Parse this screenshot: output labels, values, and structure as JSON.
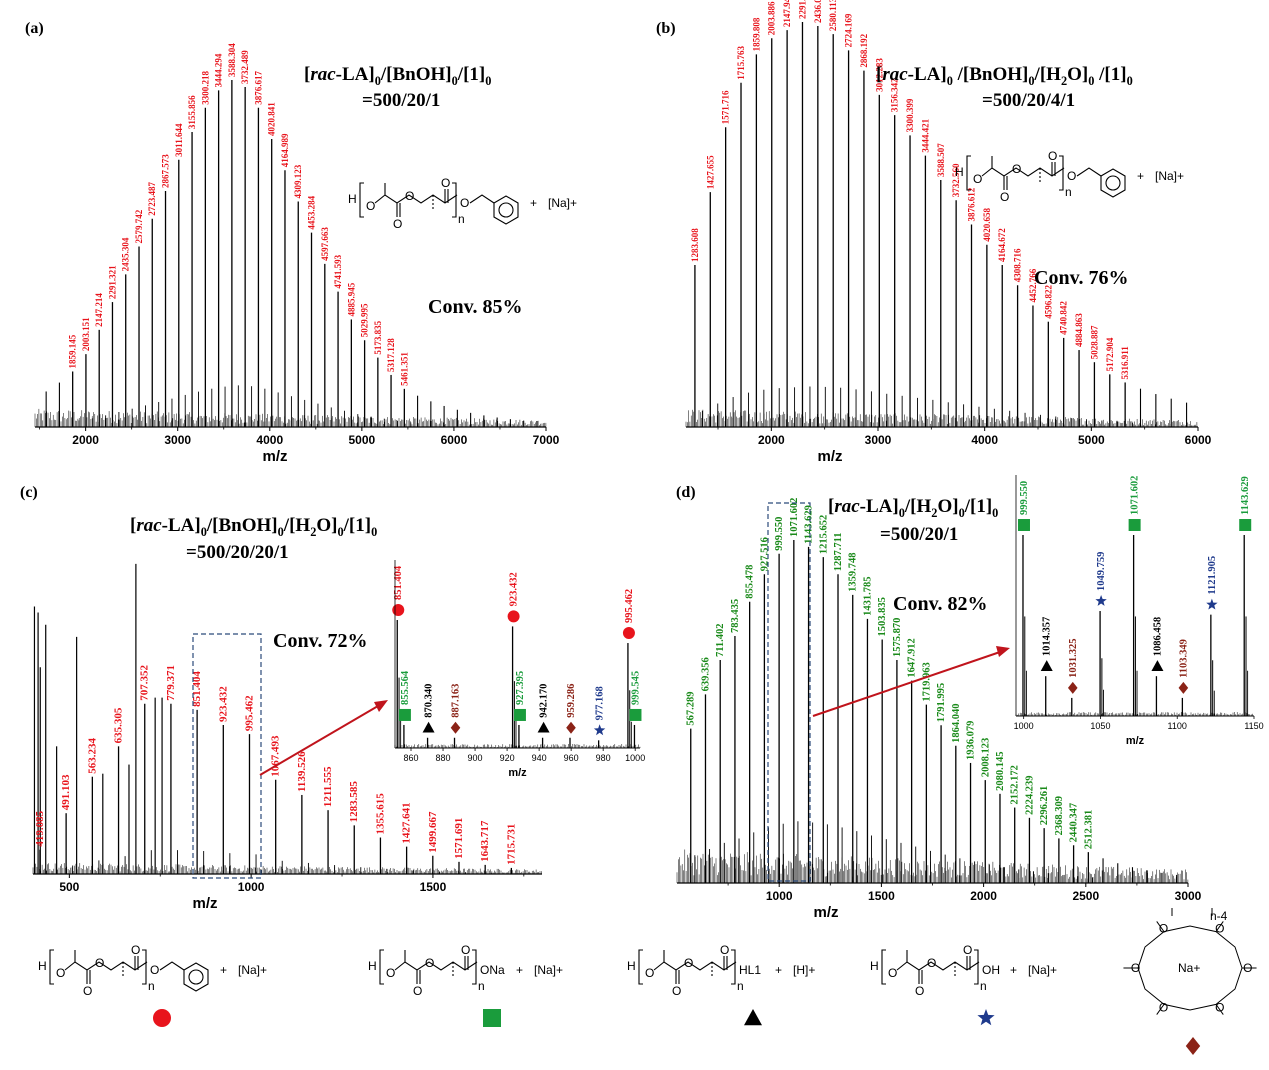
{
  "chart_data": [
    {
      "type": "bar",
      "panel_label": "(a)",
      "title_line1": "[rac-LA]0/[BnOH]0/[1]0",
      "title_line2": "=500/20/1",
      "conversion": "Conv. 85%",
      "xlabel": "m/z",
      "xlim": [
        1450,
        7000
      ],
      "xticks": [
        2000,
        3000,
        4000,
        5000,
        6000,
        7000
      ],
      "label_color": "#e8141c",
      "peak_labels": [
        "1859.145",
        "2003.151",
        "2147.214",
        "2291.321",
        "2435.304",
        "2579.742",
        "2723.487",
        "2867.573",
        "3011.644",
        "3155.856",
        "3300.218",
        "3444.294",
        "3588.304",
        "3732.489",
        "3876.617",
        "4020.841",
        "4164.989",
        "4309.123",
        "4453.284",
        "4597.663",
        "4741.593",
        "4885.945",
        "5029.995",
        "5173.835",
        "5317.128",
        "5461.351"
      ],
      "peaks_x": [
        1859.145,
        2003.151,
        2147.214,
        2291.321,
        2435.304,
        2579.742,
        2723.487,
        2867.573,
        3011.644,
        3155.856,
        3300.218,
        3444.294,
        3588.304,
        3732.489,
        3876.617,
        4020.841,
        4164.989,
        4309.123,
        4453.284,
        4597.663,
        4741.593,
        4885.945,
        5029.995,
        5173.835,
        5317.128,
        5461.351
      ],
      "peaks_y": [
        16,
        21,
        28,
        36,
        44,
        52,
        60,
        68,
        77,
        85,
        92,
        97,
        100,
        98,
        92,
        83,
        74,
        65,
        56,
        47,
        39,
        31,
        25,
        20,
        15,
        11
      ]
    },
    {
      "type": "bar",
      "panel_label": "(b)",
      "title_line1": "[rac-LA]0 /[BnOH]0/[H2O]0 /[1]0",
      "title_line2": "=500/20/4/1",
      "conversion": "Conv. 76%",
      "xlabel": "m/z",
      "xlim": [
        1200,
        6000
      ],
      "xticks": [
        2000,
        3000,
        4000,
        5000,
        6000
      ],
      "label_color": "#e8141c",
      "peak_labels": [
        "1283.608",
        "1427.655",
        "1571.716",
        "1715.763",
        "1859.808",
        "2003.886",
        "2147.941",
        "2291.986",
        "2436.002",
        "2580.113",
        "2724.169",
        "2868.192",
        "3012.283",
        "3156.342",
        "3300.399",
        "3444.421",
        "3588.507",
        "3732.560",
        "3876.612",
        "4020.658",
        "4164.672",
        "4308.716",
        "4452.766",
        "4596.822",
        "4740.842",
        "4884.863",
        "5028.887",
        "5172.904",
        "5316.911"
      ],
      "peaks_x": [
        1283.608,
        1427.655,
        1571.716,
        1715.763,
        1859.808,
        2003.886,
        2147.941,
        2291.986,
        2436.002,
        2580.113,
        2724.169,
        2868.192,
        3012.283,
        3156.342,
        3300.399,
        3444.421,
        3588.507,
        3732.56,
        3876.612,
        4020.658,
        4164.672,
        4308.716,
        4452.766,
        4596.822,
        4740.842,
        4884.863,
        5028.887,
        5172.904,
        5316.911
      ],
      "peaks_y": [
        40,
        58,
        74,
        85,
        92,
        96,
        98,
        100,
        99,
        97,
        93,
        88,
        82,
        77,
        72,
        67,
        61,
        56,
        50,
        45,
        40,
        35,
        30,
        26,
        22,
        19,
        16,
        13,
        11
      ]
    },
    {
      "type": "bar",
      "panel_label": "(c)",
      "title_line1": "[rac-LA]0/[BnOH]0/[H2O]0/[1]0",
      "title_line2": "=500/20/20/1",
      "conversion": "Conv. 72%",
      "xlabel": "m/z",
      "xlim": [
        400,
        1800
      ],
      "xticks": [
        500,
        1000,
        1500
      ],
      "label_color": "#e8141c",
      "peak_labels": [
        "419.085",
        "491.103",
        "563.234",
        "635.305",
        "707.352",
        "779.371",
        "851.404",
        "923.432",
        "995.462",
        "1067.493",
        "1139.526",
        "1211.555",
        "1283.585",
        "1355.615",
        "1427.641",
        "1499.667",
        "1571.691",
        "1643.717",
        "1715.731"
      ],
      "peaks_x": [
        419.085,
        491.103,
        563.234,
        635.305,
        707.352,
        779.371,
        851.404,
        923.432,
        995.462,
        1067.493,
        1139.526,
        1211.555,
        1283.585,
        1355.615,
        1427.641,
        1499.667,
        1571.691,
        1643.717,
        1715.731
      ],
      "peaks_y": [
        8,
        20,
        32,
        42,
        56,
        56,
        54,
        49,
        46,
        31,
        26,
        21,
        16,
        12,
        9,
        6,
        4,
        3,
        2
      ],
      "inset": {
        "xlim": [
          850,
          1003
        ],
        "xticks": [
          860,
          880,
          900,
          920,
          940,
          960,
          980,
          1000
        ],
        "xlabel": "m/z",
        "peaks": [
          {
            "x": 851.404,
            "y": 100,
            "label": "851.404",
            "marker": "circle",
            "color": "#e8141c"
          },
          {
            "x": 855.564,
            "y": 18,
            "label": "855.564",
            "marker": "square",
            "color": "#1a9c3c"
          },
          {
            "x": 870.34,
            "y": 8,
            "label": "870.340",
            "marker": "triangle",
            "color": "#000000"
          },
          {
            "x": 887.163,
            "y": 8,
            "label": "887.163",
            "marker": "diamond",
            "color": "#8b2317"
          },
          {
            "x": 923.432,
            "y": 95,
            "label": "923.432",
            "marker": "circle",
            "color": "#e8141c"
          },
          {
            "x": 927.395,
            "y": 18,
            "label": "927.395",
            "marker": "square",
            "color": "#1a9c3c"
          },
          {
            "x": 942.17,
            "y": 8,
            "label": "942.170",
            "marker": "triangle",
            "color": "#000000"
          },
          {
            "x": 959.286,
            "y": 8,
            "label": "959.286",
            "marker": "diamond",
            "color": "#8b2317"
          },
          {
            "x": 977.168,
            "y": 6,
            "label": "977.168",
            "marker": "star",
            "color": "#1f3a8c"
          },
          {
            "x": 995.462,
            "y": 82,
            "label": "995.462",
            "marker": "circle",
            "color": "#e8141c"
          },
          {
            "x": 999.545,
            "y": 18,
            "label": "999.545",
            "marker": "square",
            "color": "#1a9c3c"
          }
        ]
      }
    },
    {
      "type": "bar",
      "panel_label": "(d)",
      "title_line1": "[rac-LA]0/[H2O]0/[1]0",
      "title_line2": "=500/20/1",
      "conversion": "Conv. 82%",
      "xlabel": "m/z",
      "xlim": [
        500,
        3000
      ],
      "xticks": [
        1000,
        1500,
        2000,
        2500,
        3000
      ],
      "label_color": "#1a8a1a",
      "peak_labels": [
        "567.289",
        "639.356",
        "711.402",
        "783.435",
        "855.478",
        "927.516",
        "999.550",
        "1071.602",
        "1143.629",
        "1215.652",
        "1287.711",
        "1359.748",
        "1431.785",
        "1503.835",
        "1575.870",
        "1647.912",
        "1719.963",
        "1791.995",
        "1864.040",
        "1936.079",
        "2008.123",
        "2080.145",
        "2152.172",
        "2224.239",
        "2296.261",
        "2368.309",
        "2440.347",
        "2512.381"
      ],
      "peaks_x": [
        567.289,
        639.356,
        711.402,
        783.435,
        855.478,
        927.516,
        999.55,
        1071.602,
        1143.629,
        1215.652,
        1287.711,
        1359.748,
        1431.785,
        1503.835,
        1575.87,
        1647.912,
        1719.963,
        1791.995,
        1864.04,
        1936.079,
        2008.123,
        2080.145,
        2152.172,
        2224.239,
        2296.261,
        2368.309,
        2440.347,
        2512.381
      ],
      "peaks_y": [
        45,
        55,
        65,
        72,
        82,
        90,
        96,
        100,
        98,
        95,
        90,
        84,
        77,
        71,
        65,
        59,
        52,
        46,
        40,
        35,
        30,
        26,
        22,
        19,
        16,
        13,
        11,
        9
      ],
      "inset": {
        "xlim": [
          995,
          1150
        ],
        "xticks": [
          1000,
          1050,
          1100,
          1150
        ],
        "xlabel": "m/z",
        "peaks": [
          {
            "x": 999.55,
            "y": 100,
            "label": "999.550",
            "marker": "square",
            "color": "#1a9c3c"
          },
          {
            "x": 1014.357,
            "y": 22,
            "label": "1014.357",
            "marker": "triangle",
            "color": "#000000"
          },
          {
            "x": 1031.325,
            "y": 10,
            "label": "1031.325",
            "marker": "diamond",
            "color": "#8b2317"
          },
          {
            "x": 1049.759,
            "y": 58,
            "label": "1049.759",
            "marker": "star",
            "color": "#1f3a8c"
          },
          {
            "x": 1071.602,
            "y": 100,
            "label": "1071.602",
            "marker": "square",
            "color": "#1a9c3c"
          },
          {
            "x": 1086.458,
            "y": 22,
            "label": "1086.458",
            "marker": "triangle",
            "color": "#000000"
          },
          {
            "x": 1103.349,
            "y": 10,
            "label": "1103.349",
            "marker": "diamond",
            "color": "#8b2317"
          },
          {
            "x": 1121.905,
            "y": 56,
            "label": "1121.905",
            "marker": "star",
            "color": "#1f3a8c"
          },
          {
            "x": 1143.629,
            "y": 100,
            "label": "1143.629",
            "marker": "square",
            "color": "#1a9c3c"
          }
        ]
      }
    }
  ],
  "structures": {
    "h": "H",
    "n": "n",
    "na_plus": "[Na]+",
    "h_plus": "[H]+",
    "plus": "+",
    "ona": "ONa",
    "hl1": "HL1",
    "oh": "OH",
    "ring_na": "Na+",
    "ring_n": "n-4"
  },
  "legend_markers": [
    {
      "marker": "circle",
      "color": "#e8141c"
    },
    {
      "marker": "square",
      "color": "#1a9c3c"
    },
    {
      "marker": "triangle",
      "color": "#000000"
    },
    {
      "marker": "star",
      "color": "#1f3a8c"
    },
    {
      "marker": "diamond",
      "color": "#8b2317"
    }
  ]
}
